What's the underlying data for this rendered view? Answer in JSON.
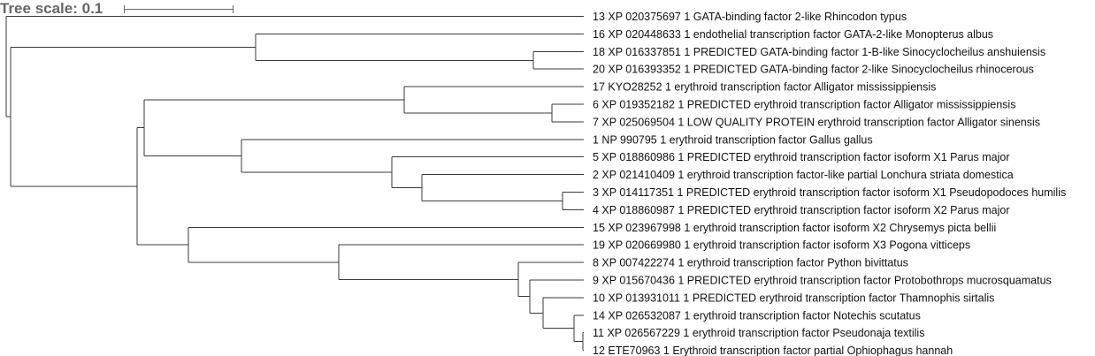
{
  "tree_scale": {
    "label": "Tree scale: 0.1"
  },
  "leaves": [
    "13 XP 020375697 1 GATA-binding factor 2-like Rhincodon typus",
    "16 XP 020448633 1 endothelial transcription factor GATA-2-like Monopterus albus",
    "18 XP 016337851 1 PREDICTED GATA-binding factor 1-B-like Sinocyclocheilus anshuiensis",
    "20 XP 016393352 1 PREDICTED GATA-binding factor 2-like Sinocyclocheilus rhinocerous",
    "17 KYO28252 1 erythroid transcription factor Alligator mississippiensis",
    "6 XP 019352182 1 PREDICTED erythroid transcription factor Alligator mississippiensis",
    "7 XP 025069504 1 LOW QUALITY PROTEIN erythroid transcription factor Alligator sinensis",
    "1 NP 990795 1 erythroid transcription factor Gallus gallus",
    "5 XP 018860986 1 PREDICTED erythroid transcription factor isoform X1 Parus major",
    "2 XP 021410409 1 erythroid transcription factor-like partial Lonchura striata domestica",
    "3 XP 014117351 1 PREDICTED erythroid transcription factor isoform X1 Pseudopodoces humilis",
    "4 XP 018860987 1 PREDICTED erythroid transcription factor isoform X2 Parus major",
    "15 XP 023967998 1 erythroid transcription factor isoform X2 Chrysemys picta bellii",
    "19 XP 020669980 1 erythroid transcription factor isoform X3 Pogona vitticeps",
    "8 XP 007422274 1 erythroid transcription factor Python bivittatus",
    "9 XP 015670436 1 PREDICTED erythroid transcription factor Protobothrops mucrosquamatus",
    "10 XP 013931011 1 PREDICTED erythroid transcription factor Thamnophis sirtalis",
    "14 XP 026532087 1 erythroid transcription factor Notechis scutatus",
    "11 XP 026567229 1 erythroid transcription factor Pseudonaja textilis",
    "12 ETE70963 1 Erythroid transcription factor partial Ophiophagus hannah"
  ]
}
